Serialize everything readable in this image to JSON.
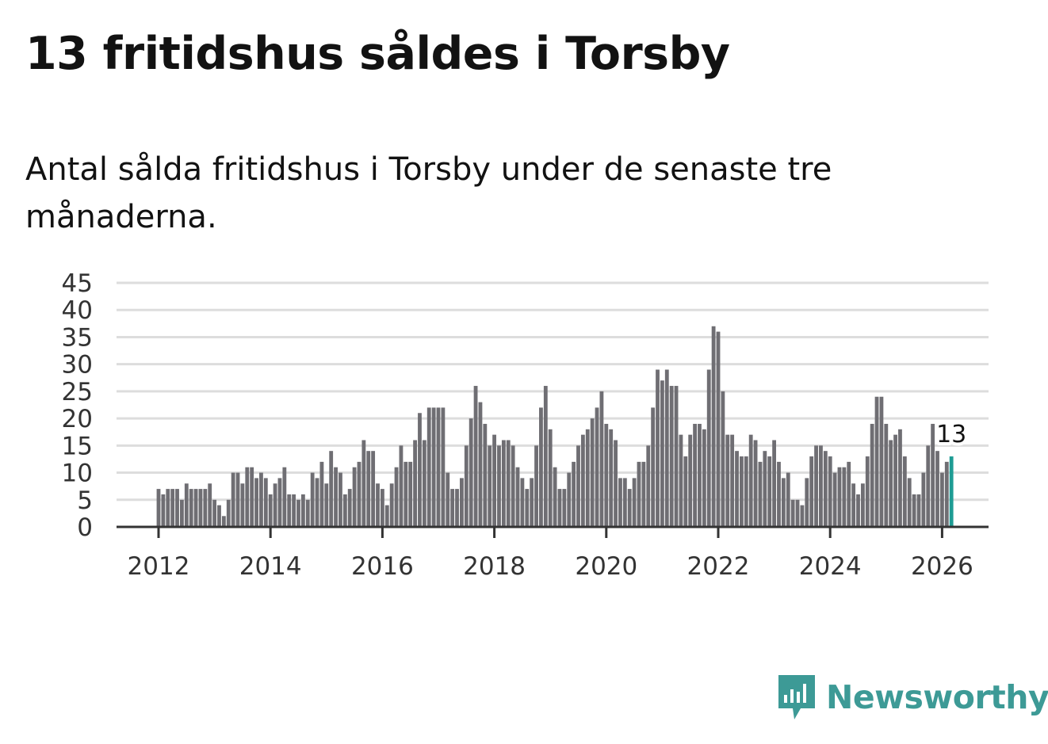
{
  "title": "13 fritidshus såldes i Torsby",
  "subtitle": "Antal sålda fritidshus i Torsby under de senaste tre månaderna.",
  "brand": {
    "name": "Newsworthy",
    "color": "#3d9a96",
    "icon": "newsworthy-logo-icon"
  },
  "chart_data": {
    "type": "bar",
    "x_start": "2012-01",
    "x_end": "2026-01",
    "x_ticks": [
      "2012",
      "2014",
      "2016",
      "2018",
      "2020",
      "2022",
      "2024",
      "2026"
    ],
    "y_ticks": [
      0,
      5,
      10,
      15,
      20,
      25,
      30,
      35,
      40,
      45
    ],
    "ylim": [
      0,
      45
    ],
    "grid": true,
    "bar_color": "#6f6e73",
    "highlight_color": "#1e9c94",
    "highlight_label": "13",
    "values": [
      7,
      6,
      7,
      7,
      7,
      5,
      8,
      7,
      7,
      7,
      7,
      8,
      5,
      4,
      2,
      5,
      10,
      10,
      8,
      11,
      11,
      9,
      10,
      9,
      6,
      8,
      9,
      11,
      6,
      6,
      5,
      6,
      5,
      10,
      9,
      12,
      8,
      14,
      11,
      10,
      6,
      7,
      11,
      12,
      16,
      14,
      14,
      8,
      7,
      4,
      8,
      11,
      15,
      12,
      12,
      16,
      21,
      16,
      22,
      22,
      22,
      22,
      10,
      7,
      7,
      9,
      15,
      20,
      26,
      23,
      19,
      15,
      17,
      15,
      16,
      16,
      15,
      11,
      9,
      7,
      9,
      15,
      22,
      26,
      18,
      11,
      7,
      7,
      10,
      12,
      15,
      17,
      18,
      20,
      22,
      25,
      19,
      18,
      16,
      9,
      9,
      7,
      9,
      12,
      12,
      15,
      22,
      29,
      27,
      29,
      26,
      26,
      17,
      13,
      17,
      19,
      19,
      18,
      29,
      37,
      36,
      25,
      17,
      17,
      14,
      13,
      13,
      17,
      16,
      12,
      14,
      13,
      16,
      12,
      9,
      10,
      5,
      5,
      4,
      9,
      13,
      15,
      15,
      14,
      13,
      10,
      11,
      11,
      12,
      8,
      6,
      8,
      13,
      19,
      24,
      24,
      19,
      16,
      17,
      18,
      13,
      9,
      6,
      6,
      10,
      15,
      19,
      14,
      10,
      12,
      13
    ]
  }
}
